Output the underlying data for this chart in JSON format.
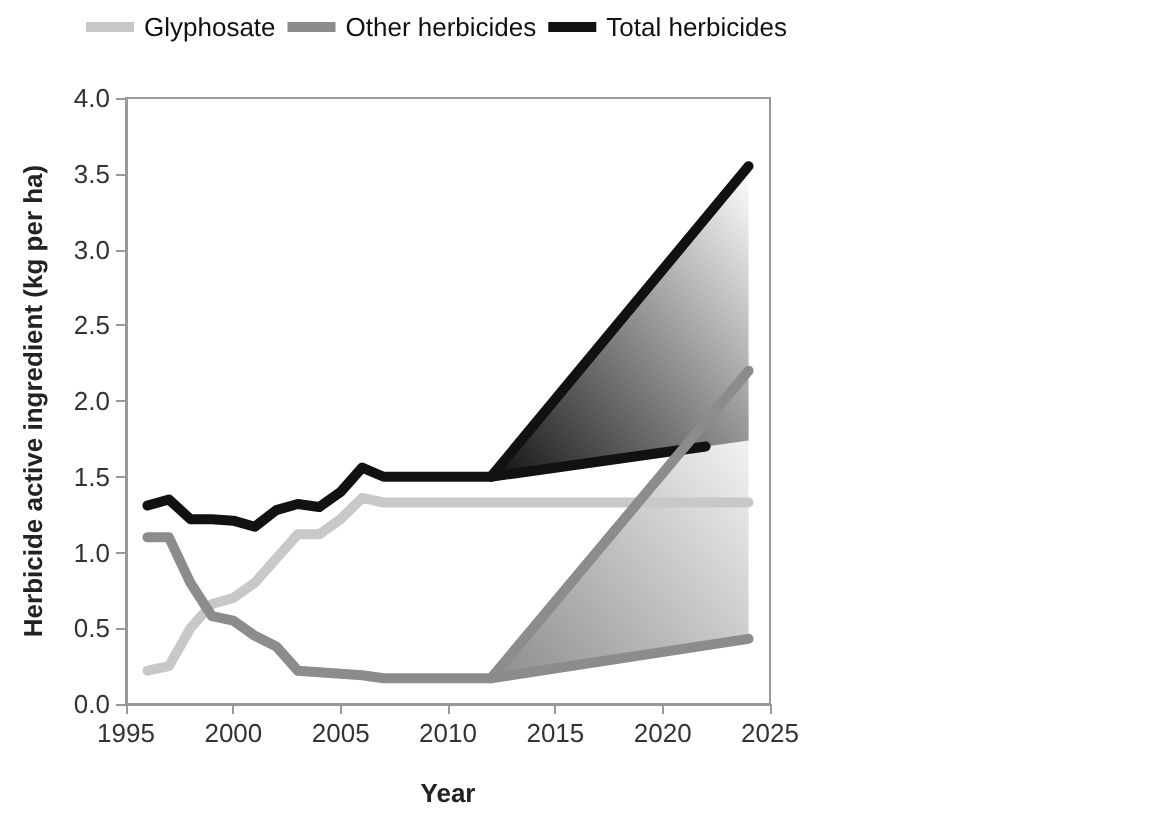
{
  "chart_data": {
    "type": "line",
    "xlabel": "Year",
    "ylabel": "Herbicide active ingredient (kg per ha)",
    "xlim": [
      1995,
      2025
    ],
    "xticks": [
      1995,
      2000,
      2005,
      2010,
      2015,
      2020,
      2025
    ],
    "ylim": [
      0,
      4.0
    ],
    "yticks": [
      {
        "value": 0,
        "label": "0.0"
      },
      {
        "value": 0.5,
        "label": "0.5"
      },
      {
        "value": 1,
        "label": "1.0"
      },
      {
        "value": 1.5,
        "label": "1.5"
      },
      {
        "value": 2,
        "label": "2.0"
      },
      {
        "value": 2.5,
        "label": "2.5"
      },
      {
        "value": 3,
        "label": "3.0"
      },
      {
        "value": 3.5,
        "label": "3.5"
      },
      {
        "value": 4,
        "label": "4.0"
      }
    ],
    "grid": false,
    "legend": "top left",
    "marker": "none",
    "line_style": "solid",
    "series": [
      {
        "name": "Glyphosate",
        "color": "#c8c8c8",
        "x": [
          1996,
          1997,
          1998,
          1999,
          2000,
          2001,
          2002,
          2003,
          2004,
          2005,
          2006,
          2007,
          2012,
          2024
        ],
        "values": [
          0.22,
          0.25,
          0.5,
          0.66,
          0.7,
          0.8,
          0.96,
          1.12,
          1.12,
          1.22,
          1.36,
          1.33,
          1.33,
          1.33
        ]
      },
      {
        "name": "Other herbicides",
        "color": "#8c8c8c",
        "x": [
          1996,
          1997,
          1998,
          1999,
          2000,
          2001,
          2002,
          2003,
          2004,
          2005,
          2006,
          2007,
          2012,
          2024
        ],
        "values": [
          1.1,
          1.1,
          0.8,
          0.58,
          0.55,
          0.45,
          0.38,
          0.22,
          0.21,
          0.2,
          0.19,
          0.17,
          0.17,
          0.43
        ]
      },
      {
        "name": "Total herbicides",
        "color": "#111111",
        "x": [
          1996,
          1997,
          1998,
          1999,
          2000,
          2001,
          2002,
          2003,
          2004,
          2005,
          2006,
          2007,
          2012,
          2022
        ],
        "values": [
          1.31,
          1.35,
          1.22,
          1.22,
          1.21,
          1.17,
          1.28,
          1.32,
          1.3,
          1.4,
          1.56,
          1.5,
          1.5,
          1.7
        ]
      },
      {
        "color": "#8c8c8c",
        "x": [
          2012,
          2024
        ],
        "values": [
          0.17,
          2.2
        ],
        "lower": [
          0.17,
          0.43
        ],
        "upper": [
          0.17,
          2.2
        ]
      },
      {
        "color": "#111111",
        "x": [
          2012,
          2024
        ],
        "values": [
          1.5,
          3.55
        ],
        "lower": [
          1.5,
          1.74
        ],
        "upper": [
          1.5,
          3.55
        ]
      }
    ]
  }
}
